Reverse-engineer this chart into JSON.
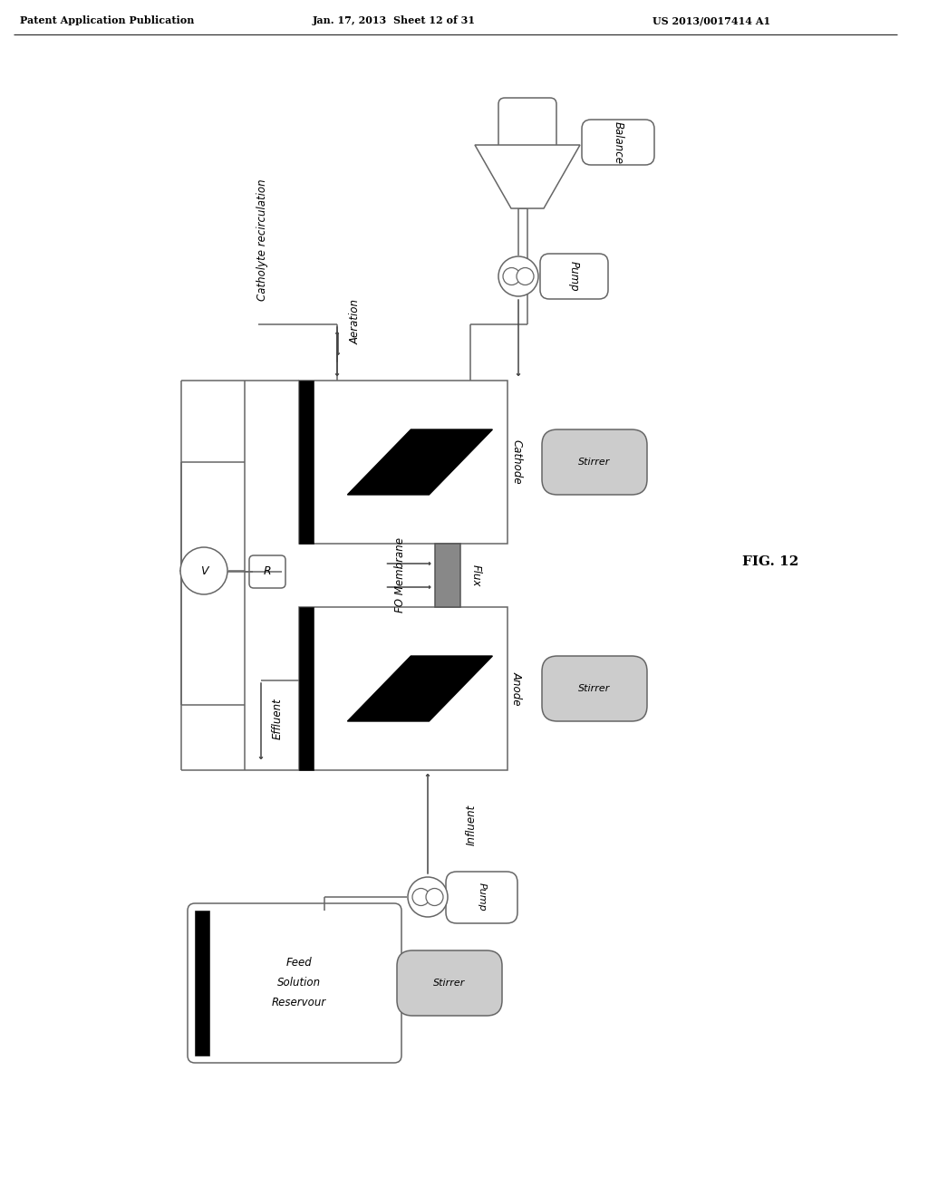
{
  "bg_color": "#ffffff",
  "header_left": "Patent Application Publication",
  "header_mid": "Jan. 17, 2013  Sheet 12 of 31",
  "header_right": "US 2013/0017414 A1",
  "fig_label": "FIG. 12",
  "lc": "#666666",
  "dark": "#111111",
  "gray_membrane": "#888888",
  "stirrer_fill": "#cccccc"
}
